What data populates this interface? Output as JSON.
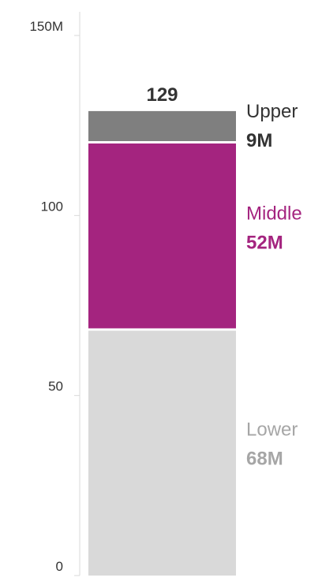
{
  "chart_data": {
    "type": "bar",
    "stacked": true,
    "categories": [
      ""
    ],
    "series": [
      {
        "name": "Lower",
        "values": [
          68
        ],
        "value_label": "68M",
        "color": "#d9d9d9",
        "label_color": "#a6a6a6"
      },
      {
        "name": "Middle",
        "values": [
          52
        ],
        "value_label": "52M",
        "color": "#a4247f",
        "label_color": "#a4247f"
      },
      {
        "name": "Upper",
        "values": [
          9
        ],
        "value_label": "9M",
        "color": "#7f7f7f",
        "label_color": "#333333"
      }
    ],
    "total_label": "129",
    "ylim": [
      0,
      150
    ],
    "yticks": [
      {
        "value": 0,
        "label": "0"
      },
      {
        "value": 50,
        "label": "50"
      },
      {
        "value": 100,
        "label": "100"
      },
      {
        "value": 150,
        "label": "150M"
      }
    ],
    "grid": false,
    "title": "",
    "xlabel": "",
    "ylabel": ""
  }
}
